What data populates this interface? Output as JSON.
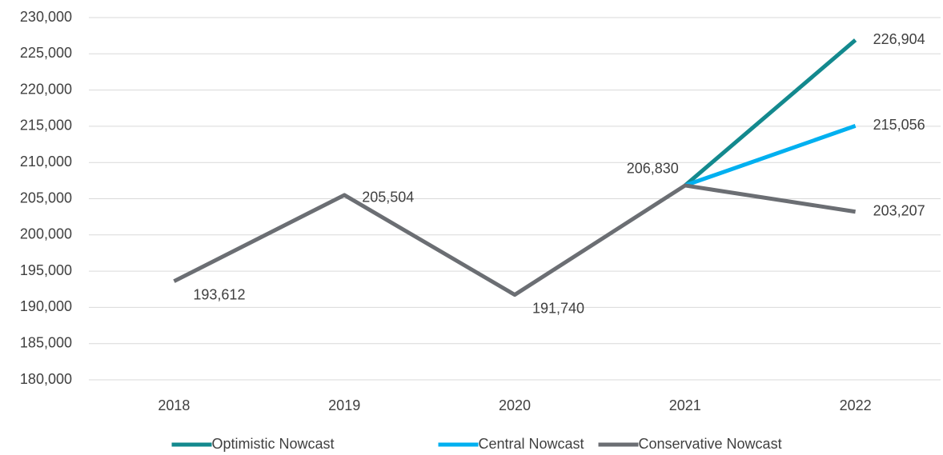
{
  "chart_data": {
    "type": "line",
    "categories": [
      "2018",
      "2019",
      "2020",
      "2021",
      "2022"
    ],
    "series": [
      {
        "name": "Optimistic Nowcast",
        "color": "#13898e",
        "values": [
          null,
          null,
          null,
          206830,
          226904
        ],
        "value_labels": [
          null,
          null,
          null,
          null,
          "226,904"
        ]
      },
      {
        "name": "Central Nowcast",
        "color": "#00b0f0",
        "values": [
          null,
          null,
          null,
          206830,
          215056
        ],
        "value_labels": [
          null,
          null,
          null,
          null,
          "215,056"
        ]
      },
      {
        "name": "Conservative Nowcast",
        "color": "#6b6e73",
        "values": [
          193612,
          205504,
          191740,
          206830,
          203207
        ],
        "value_labels": [
          "193,612",
          "205,504",
          "191,740",
          "206,830",
          "203,207"
        ]
      }
    ],
    "ylim": [
      180000,
      230000
    ],
    "yticks": [
      {
        "value": 180000,
        "label": "180,000"
      },
      {
        "value": 185000,
        "label": "185,000"
      },
      {
        "value": 190000,
        "label": "190,000"
      },
      {
        "value": 195000,
        "label": "195,000"
      },
      {
        "value": 200000,
        "label": "200,000"
      },
      {
        "value": 205000,
        "label": "205,000"
      },
      {
        "value": 210000,
        "label": "210,000"
      },
      {
        "value": 215000,
        "label": "215,000"
      },
      {
        "value": 220000,
        "label": "220,000"
      },
      {
        "value": 225000,
        "label": "225,000"
      },
      {
        "value": 230000,
        "label": "230,000"
      }
    ],
    "grid": true,
    "legend": "bottom"
  }
}
